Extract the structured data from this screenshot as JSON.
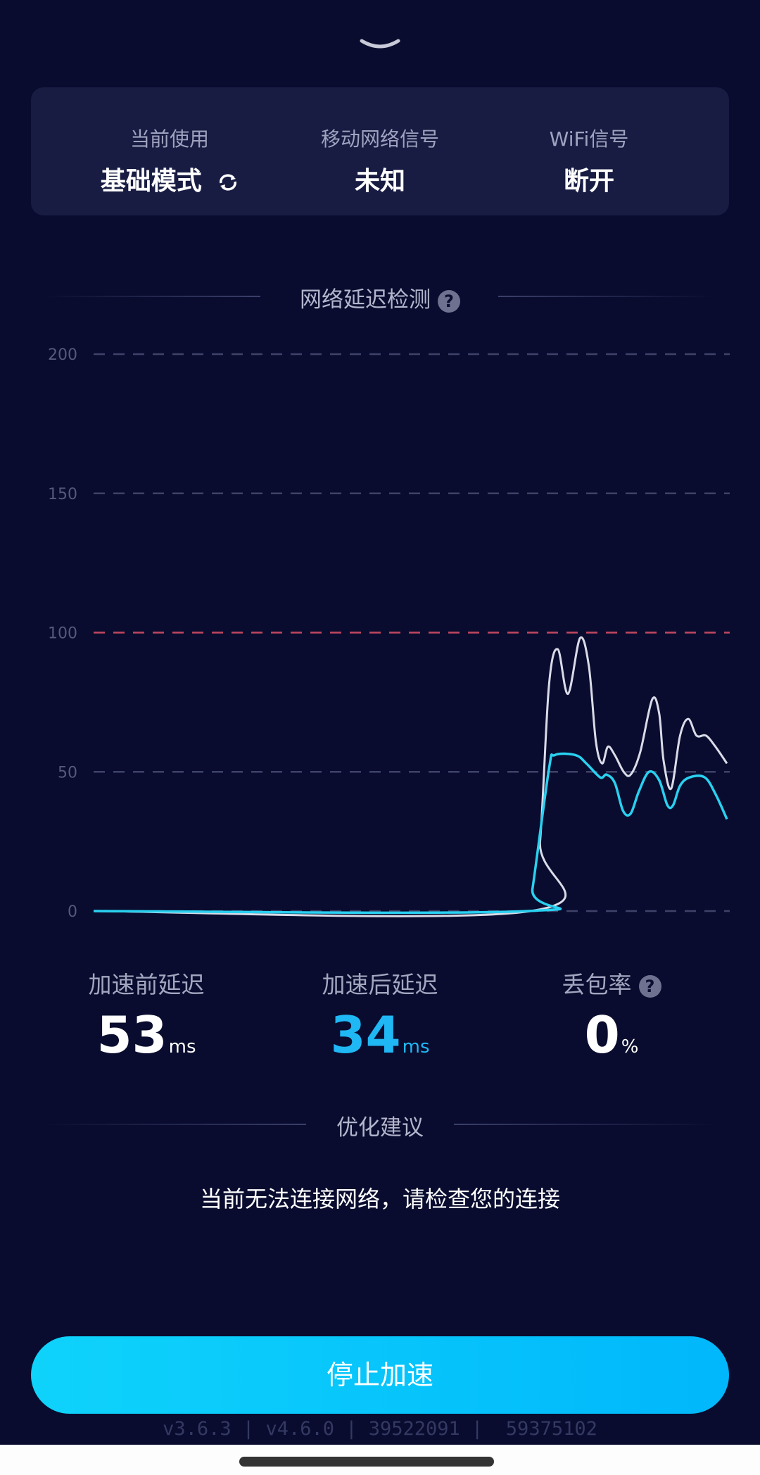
{
  "status_card": {
    "columns": [
      {
        "label": "当前使用",
        "value": "基础模式",
        "icon": "switch-cycle-icon"
      },
      {
        "label": "移动网络信号",
        "value": "未知"
      },
      {
        "label": "WiFi信号",
        "value": "断开"
      }
    ]
  },
  "latency_section": {
    "title": "网络延迟检测",
    "help_icon": "question-icon"
  },
  "chart_data": {
    "type": "line",
    "ylim": [
      0,
      200
    ],
    "yticks": [
      "0",
      "50",
      "100",
      "150",
      "200"
    ],
    "grid": true,
    "threshold": {
      "value": 100,
      "color": "#c2465f"
    },
    "series": [
      {
        "color": "#d9dbe8",
        "points": [
          [
            0,
            0
          ],
          [
            69,
            0
          ],
          [
            70.5,
            25
          ],
          [
            71.9,
            81
          ],
          [
            73.3,
            94
          ],
          [
            74.9,
            78
          ],
          [
            76.8,
            98
          ],
          [
            78.2,
            88
          ],
          [
            79.3,
            61
          ],
          [
            80.3,
            53
          ],
          [
            81.2,
            59
          ],
          [
            82.3,
            56
          ],
          [
            83.7,
            50
          ],
          [
            84.8,
            49
          ],
          [
            86.3,
            57
          ],
          [
            88.2,
            76
          ],
          [
            89.3,
            71
          ],
          [
            90,
            54
          ],
          [
            91.2,
            44
          ],
          [
            92.6,
            63
          ],
          [
            93.9,
            69
          ],
          [
            95.2,
            63
          ],
          [
            96.7,
            63
          ],
          [
            98.2,
            59
          ],
          [
            100,
            53
          ]
        ]
      },
      {
        "color": "#29d0f0",
        "points": [
          [
            0,
            0
          ],
          [
            68.5,
            0
          ],
          [
            69.3,
            8
          ],
          [
            71.9,
            51
          ],
          [
            72.8,
            56
          ],
          [
            76.1,
            56
          ],
          [
            77.8,
            53
          ],
          [
            80,
            48
          ],
          [
            81,
            49
          ],
          [
            82.3,
            46
          ],
          [
            83.6,
            36
          ],
          [
            84.8,
            35
          ],
          [
            86.1,
            43
          ],
          [
            87.7,
            50
          ],
          [
            89.3,
            47
          ],
          [
            90.6,
            38
          ],
          [
            91.5,
            38
          ],
          [
            92.6,
            45
          ],
          [
            94.1,
            48
          ],
          [
            96.5,
            48
          ],
          [
            98.2,
            42
          ],
          [
            100,
            33
          ]
        ]
      }
    ]
  },
  "stats": [
    {
      "label": "加速前延迟",
      "value": "53",
      "unit": "ms",
      "color": "#ffffff"
    },
    {
      "label": "加速后延迟",
      "value": "34",
      "unit": "ms",
      "color": "#1fb8f5"
    },
    {
      "label": "丢包率",
      "value": "0",
      "unit": "%",
      "color": "#ffffff",
      "help_icon": "question-icon"
    }
  ],
  "advice": {
    "title": "优化建议",
    "message": "当前无法连接网络，请检查您的连接"
  },
  "stop_button": "停止加速",
  "version_line": "v3.6.3 | v4.6.0 | 39522091 |  59375102"
}
